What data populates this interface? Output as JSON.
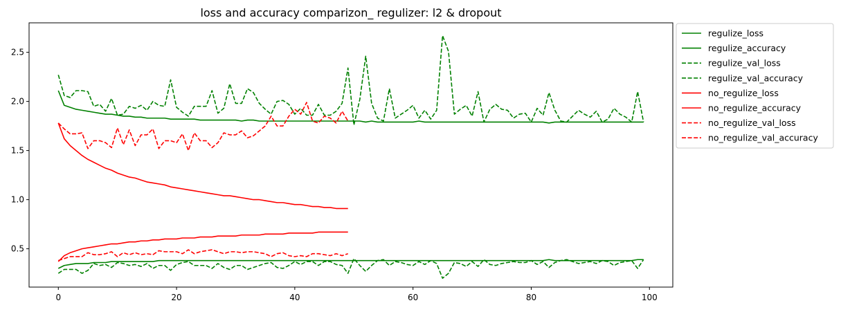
{
  "chart_data": {
    "type": "line",
    "title": "loss and accuracy comparizon_ regulizer: l2 & dropout",
    "xlabel": "",
    "ylabel": "",
    "xlim": [
      -4.95,
      103.95
    ],
    "ylim": [
      0.11,
      2.8
    ],
    "xticks": [
      0,
      20,
      40,
      60,
      80,
      100
    ],
    "yticks": [
      0.5,
      1.0,
      1.5,
      2.0,
      2.5
    ],
    "xtick_labels": [
      "0",
      "20",
      "40",
      "60",
      "80",
      "100"
    ],
    "ytick_labels": [
      "0.5",
      "1.0",
      "1.5",
      "2.0",
      "2.5"
    ],
    "grid": false,
    "legend_position": "outside-right-top",
    "series": [
      {
        "name": "regulize_loss",
        "color": "#008000",
        "style": "solid",
        "values": [
          2.11,
          1.96,
          1.94,
          1.92,
          1.91,
          1.9,
          1.89,
          1.88,
          1.87,
          1.87,
          1.86,
          1.85,
          1.85,
          1.84,
          1.84,
          1.83,
          1.83,
          1.83,
          1.83,
          1.82,
          1.82,
          1.82,
          1.82,
          1.82,
          1.81,
          1.81,
          1.81,
          1.81,
          1.81,
          1.81,
          1.81,
          1.8,
          1.81,
          1.81,
          1.8,
          1.8,
          1.8,
          1.8,
          1.8,
          1.8,
          1.8,
          1.8,
          1.8,
          1.8,
          1.8,
          1.8,
          1.8,
          1.8,
          1.8,
          1.8,
          1.8,
          1.8,
          1.79,
          1.8,
          1.79,
          1.79,
          1.79,
          1.79,
          1.79,
          1.79,
          1.79,
          1.8,
          1.79,
          1.79,
          1.79,
          1.79,
          1.79,
          1.79,
          1.79,
          1.79,
          1.79,
          1.79,
          1.79,
          1.79,
          1.79,
          1.79,
          1.79,
          1.79,
          1.79,
          1.79,
          1.79,
          1.79,
          1.79,
          1.78,
          1.79,
          1.79,
          1.79,
          1.79,
          1.79,
          1.79,
          1.79,
          1.79,
          1.79,
          1.79,
          1.79,
          1.79,
          1.79,
          1.79,
          1.79,
          1.79
        ]
      },
      {
        "name": "regulize_accuracy",
        "color": "#008000",
        "style": "solid",
        "values": [
          0.3,
          0.33,
          0.34,
          0.35,
          0.35,
          0.35,
          0.36,
          0.36,
          0.36,
          0.37,
          0.37,
          0.37,
          0.37,
          0.37,
          0.37,
          0.37,
          0.37,
          0.38,
          0.38,
          0.38,
          0.38,
          0.38,
          0.38,
          0.38,
          0.38,
          0.38,
          0.38,
          0.38,
          0.38,
          0.38,
          0.38,
          0.38,
          0.38,
          0.38,
          0.38,
          0.38,
          0.38,
          0.38,
          0.38,
          0.38,
          0.38,
          0.38,
          0.38,
          0.38,
          0.38,
          0.38,
          0.38,
          0.38,
          0.38,
          0.38,
          0.38,
          0.38,
          0.38,
          0.38,
          0.38,
          0.38,
          0.38,
          0.38,
          0.38,
          0.38,
          0.38,
          0.38,
          0.38,
          0.38,
          0.38,
          0.38,
          0.38,
          0.38,
          0.38,
          0.38,
          0.38,
          0.38,
          0.38,
          0.38,
          0.38,
          0.38,
          0.38,
          0.38,
          0.38,
          0.38,
          0.38,
          0.38,
          0.38,
          0.39,
          0.38,
          0.38,
          0.38,
          0.38,
          0.38,
          0.38,
          0.38,
          0.38,
          0.38,
          0.38,
          0.38,
          0.38,
          0.38,
          0.38,
          0.39,
          0.39
        ]
      },
      {
        "name": "regulize_val_loss",
        "color": "#008000",
        "style": "dashed",
        "values": [
          2.27,
          2.06,
          2.04,
          2.11,
          2.11,
          2.1,
          1.95,
          1.97,
          1.9,
          2.03,
          1.86,
          1.87,
          1.95,
          1.93,
          1.96,
          1.91,
          2.0,
          1.96,
          1.95,
          2.22,
          1.94,
          1.89,
          1.85,
          1.95,
          1.95,
          1.95,
          2.11,
          1.88,
          1.93,
          2.18,
          1.98,
          1.98,
          2.13,
          2.09,
          1.98,
          1.92,
          1.87,
          2.0,
          2.01,
          1.97,
          1.87,
          1.93,
          1.86,
          1.86,
          1.97,
          1.86,
          1.86,
          1.9,
          1.98,
          2.34,
          1.76,
          2.02,
          2.46,
          1.98,
          1.83,
          1.8,
          2.13,
          1.83,
          1.87,
          1.91,
          1.96,
          1.83,
          1.91,
          1.82,
          1.91,
          2.67,
          2.51,
          1.87,
          1.92,
          1.96,
          1.85,
          2.1,
          1.79,
          1.92,
          1.97,
          1.92,
          1.91,
          1.83,
          1.87,
          1.88,
          1.79,
          1.93,
          1.86,
          2.09,
          1.91,
          1.8,
          1.79,
          1.85,
          1.91,
          1.87,
          1.84,
          1.9,
          1.79,
          1.82,
          1.93,
          1.87,
          1.84,
          1.79,
          2.1,
          1.79
        ]
      },
      {
        "name": "regulize_val_accuracy",
        "color": "#008000",
        "style": "dashed",
        "values": [
          0.25,
          0.29,
          0.29,
          0.29,
          0.25,
          0.28,
          0.35,
          0.33,
          0.34,
          0.31,
          0.36,
          0.35,
          0.33,
          0.34,
          0.32,
          0.35,
          0.3,
          0.33,
          0.33,
          0.28,
          0.34,
          0.36,
          0.37,
          0.33,
          0.33,
          0.33,
          0.3,
          0.35,
          0.31,
          0.29,
          0.33,
          0.33,
          0.29,
          0.31,
          0.33,
          0.35,
          0.36,
          0.31,
          0.3,
          0.33,
          0.37,
          0.34,
          0.37,
          0.37,
          0.33,
          0.37,
          0.37,
          0.34,
          0.33,
          0.25,
          0.4,
          0.33,
          0.27,
          0.33,
          0.38,
          0.39,
          0.33,
          0.37,
          0.36,
          0.34,
          0.33,
          0.37,
          0.34,
          0.38,
          0.35,
          0.2,
          0.25,
          0.36,
          0.35,
          0.32,
          0.37,
          0.32,
          0.39,
          0.34,
          0.33,
          0.35,
          0.36,
          0.37,
          0.36,
          0.36,
          0.38,
          0.34,
          0.37,
          0.31,
          0.36,
          0.38,
          0.39,
          0.37,
          0.35,
          0.36,
          0.37,
          0.35,
          0.38,
          0.37,
          0.33,
          0.36,
          0.37,
          0.38,
          0.3,
          0.39
        ]
      },
      {
        "name": "no_regulize_loss",
        "color": "#ff0000",
        "style": "solid",
        "values": [
          1.78,
          1.62,
          1.55,
          1.5,
          1.45,
          1.41,
          1.38,
          1.35,
          1.32,
          1.3,
          1.27,
          1.25,
          1.23,
          1.22,
          1.2,
          1.18,
          1.17,
          1.16,
          1.15,
          1.13,
          1.12,
          1.11,
          1.1,
          1.09,
          1.08,
          1.07,
          1.06,
          1.05,
          1.04,
          1.04,
          1.03,
          1.02,
          1.01,
          1.0,
          1.0,
          0.99,
          0.98,
          0.97,
          0.97,
          0.96,
          0.95,
          0.95,
          0.94,
          0.93,
          0.93,
          0.92,
          0.92,
          0.91,
          0.91,
          0.91
        ]
      },
      {
        "name": "no_regulize_accuracy",
        "color": "#ff0000",
        "style": "solid",
        "values": [
          0.37,
          0.43,
          0.46,
          0.48,
          0.5,
          0.51,
          0.52,
          0.53,
          0.54,
          0.55,
          0.55,
          0.56,
          0.57,
          0.57,
          0.58,
          0.58,
          0.59,
          0.59,
          0.6,
          0.6,
          0.6,
          0.61,
          0.61,
          0.61,
          0.62,
          0.62,
          0.62,
          0.63,
          0.63,
          0.63,
          0.63,
          0.64,
          0.64,
          0.64,
          0.64,
          0.65,
          0.65,
          0.65,
          0.65,
          0.66,
          0.66,
          0.66,
          0.66,
          0.66,
          0.67,
          0.67,
          0.67,
          0.67,
          0.67,
          0.67
        ]
      },
      {
        "name": "no_regulize_val_loss",
        "color": "#ff0000",
        "style": "dashed",
        "values": [
          1.78,
          1.72,
          1.67,
          1.67,
          1.68,
          1.52,
          1.6,
          1.6,
          1.58,
          1.53,
          1.73,
          1.56,
          1.71,
          1.55,
          1.66,
          1.66,
          1.72,
          1.52,
          1.6,
          1.6,
          1.58,
          1.67,
          1.5,
          1.68,
          1.6,
          1.6,
          1.53,
          1.58,
          1.68,
          1.66,
          1.66,
          1.7,
          1.63,
          1.65,
          1.7,
          1.75,
          1.85,
          1.75,
          1.75,
          1.85,
          1.92,
          1.87,
          1.99,
          1.8,
          1.78,
          1.85,
          1.83,
          1.78,
          1.9,
          1.8
        ]
      },
      {
        "name": "no_regulize_val_accuracy",
        "color": "#ff0000",
        "style": "dashed",
        "values": [
          0.38,
          0.4,
          0.42,
          0.42,
          0.42,
          0.46,
          0.44,
          0.44,
          0.45,
          0.47,
          0.42,
          0.46,
          0.44,
          0.46,
          0.44,
          0.45,
          0.44,
          0.48,
          0.47,
          0.47,
          0.47,
          0.45,
          0.49,
          0.45,
          0.47,
          0.48,
          0.49,
          0.47,
          0.45,
          0.47,
          0.47,
          0.46,
          0.47,
          0.47,
          0.46,
          0.45,
          0.42,
          0.45,
          0.46,
          0.43,
          0.42,
          0.43,
          0.42,
          0.45,
          0.45,
          0.44,
          0.43,
          0.45,
          0.43,
          0.45
        ]
      }
    ]
  }
}
